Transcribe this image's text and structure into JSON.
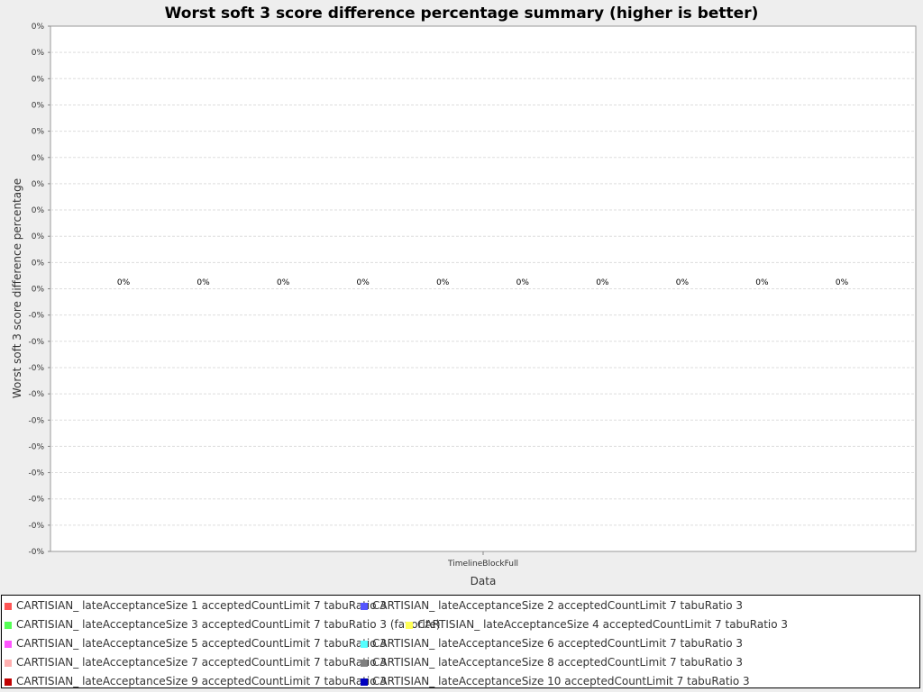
{
  "chart_data": {
    "type": "bar",
    "title": "Worst soft 3 score difference percentage summary (higher is better)",
    "xlabel": "Data",
    "ylabel": "Worst soft 3 score difference percentage",
    "categories": [
      "TimelineBlockFull"
    ],
    "y_tick_labels": [
      "0%",
      "0%",
      "0%",
      "0%",
      "0%",
      "0%",
      "0%",
      "0%",
      "0%",
      "0%",
      "0%",
      "-0%",
      "-0%",
      "-0%",
      "-0%",
      "-0%",
      "-0%",
      "-0%",
      "-0%",
      "-0%",
      "-0%"
    ],
    "grid": true,
    "legend_position": "bottom",
    "series": [
      {
        "name": "CARTISIAN_ lateAcceptanceSize 1 acceptedCountLimit 7 tabuRatio 3",
        "color": "#ff5555",
        "values": [
          0
        ],
        "data_label": "0%"
      },
      {
        "name": "CARTISIAN_ lateAcceptanceSize 2 acceptedCountLimit 7 tabuRatio 3",
        "color": "#5555ff",
        "values": [
          0
        ],
        "data_label": "0%"
      },
      {
        "name": "CARTISIAN_ lateAcceptanceSize 3 acceptedCountLimit 7 tabuRatio 3 (favorite)",
        "color": "#55ff55",
        "values": [
          0
        ],
        "data_label": "0%"
      },
      {
        "name": "CARTISIAN_ lateAcceptanceSize 4 acceptedCountLimit 7 tabuRatio 3",
        "color": "#ffff55",
        "values": [
          0
        ],
        "data_label": "0%"
      },
      {
        "name": "CARTISIAN_ lateAcceptanceSize 5 acceptedCountLimit 7 tabuRatio 3",
        "color": "#ff55ff",
        "values": [
          0
        ],
        "data_label": "0%"
      },
      {
        "name": "CARTISIAN_ lateAcceptanceSize 6 acceptedCountLimit 7 tabuRatio 3",
        "color": "#55ffff",
        "values": [
          0
        ],
        "data_label": "0%"
      },
      {
        "name": "CARTISIAN_ lateAcceptanceSize 7 acceptedCountLimit 7 tabuRatio 3",
        "color": "#ffafaf",
        "values": [
          0
        ],
        "data_label": "0%"
      },
      {
        "name": "CARTISIAN_ lateAcceptanceSize 8 acceptedCountLimit 7 tabuRatio 3",
        "color": "#808080",
        "values": [
          0
        ],
        "data_label": "0%"
      },
      {
        "name": "CARTISIAN_ lateAcceptanceSize 9 acceptedCountLimit 7 tabuRatio 3",
        "color": "#c00000",
        "values": [
          0
        ],
        "data_label": "0%"
      },
      {
        "name": "CARTISIAN_ lateAcceptanceSize 10 acceptedCountLimit 7 tabuRatio 3",
        "color": "#0000c0",
        "values": [
          0
        ],
        "data_label": "0%"
      }
    ]
  }
}
